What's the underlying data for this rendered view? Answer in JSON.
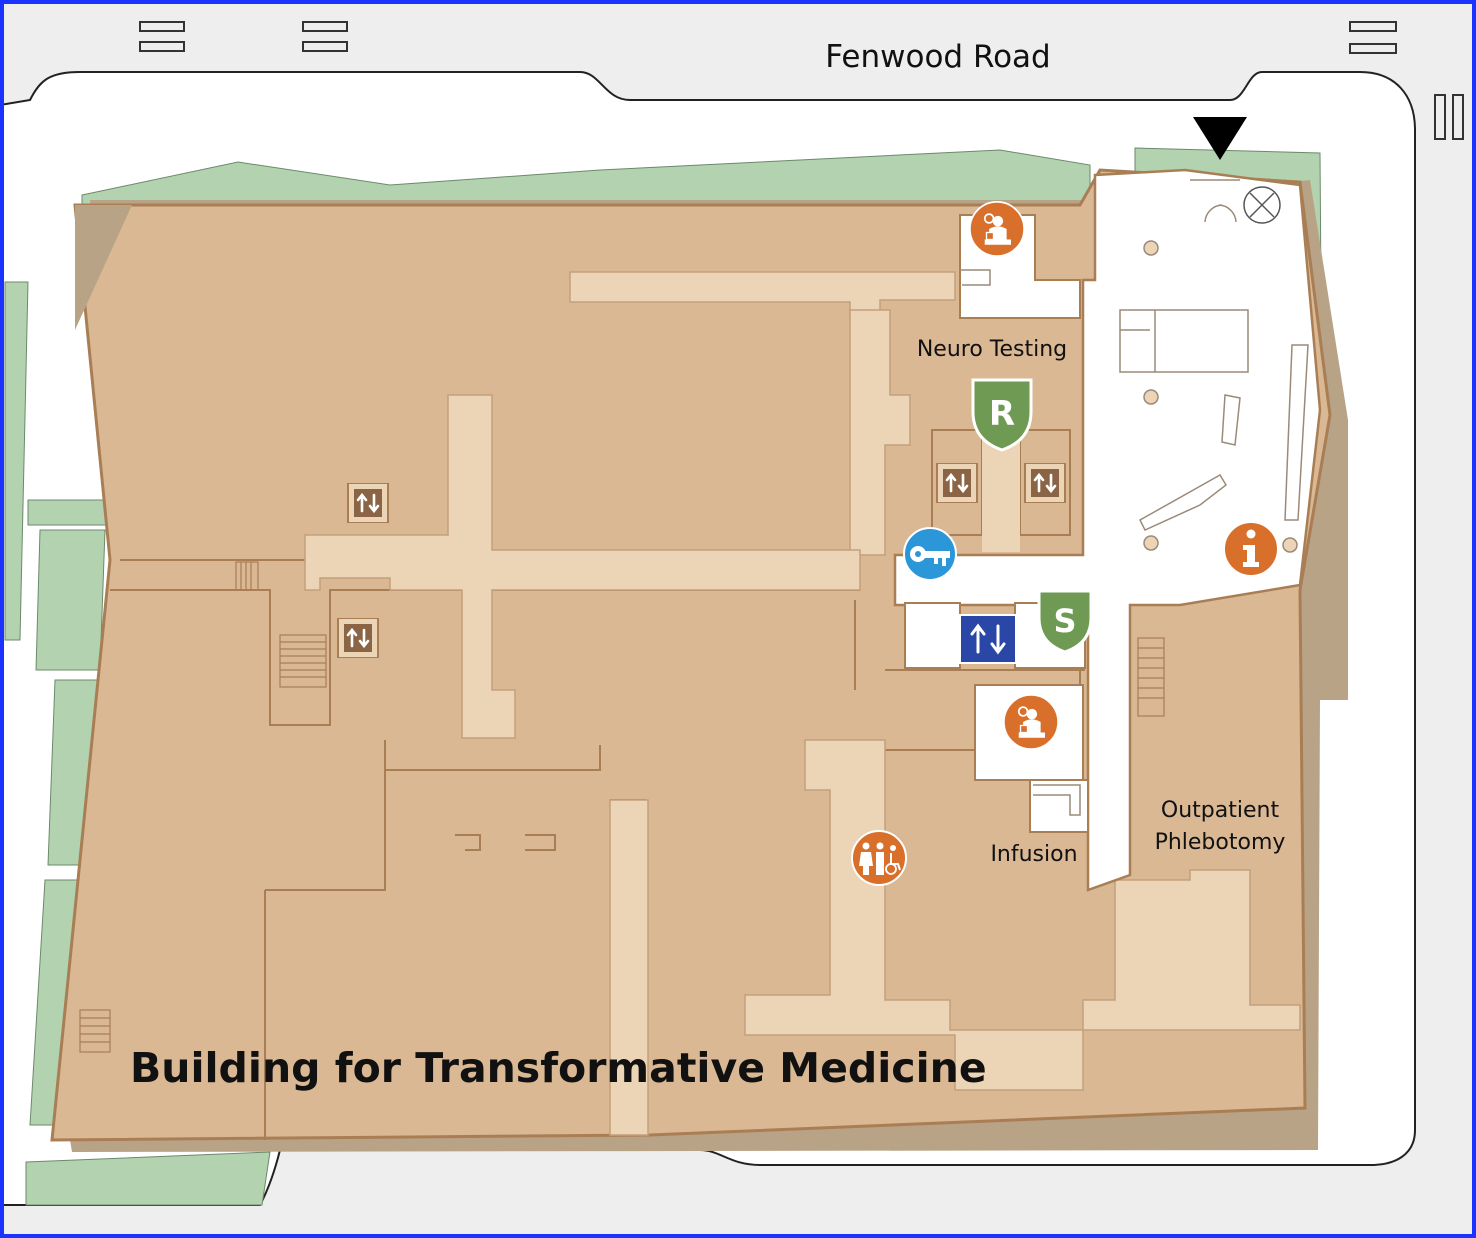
{
  "map": {
    "street_label": "Fenwood Road",
    "building_label": "Building for Transformative Medicine",
    "room_labels": {
      "neuro_testing": "Neuro Testing",
      "infusion": "Infusion",
      "outpatient_line1": "Outpatient",
      "outpatient_line2": "Phlebotomy"
    },
    "badges": {
      "r_shield": "R",
      "s_shield": "S"
    },
    "icons": [
      "entrance-arrow-icon",
      "waiting-area-icon",
      "elevator-icon",
      "key-icon",
      "info-icon",
      "restroom-icon",
      "stairs-icon"
    ],
    "colors": {
      "building": "#d9b893",
      "corridor": "#ecd4b6",
      "wall": "#a97e55",
      "shadow": "#b9a386",
      "lawn": "#b2d2b0",
      "road": "#eeeeee",
      "frame": "#1a33ff",
      "icon_orange": "#d8702c",
      "shield_green": "#6f9a53",
      "key_blue": "#2b96d8",
      "elevator_blue": "#2a46a6"
    }
  }
}
